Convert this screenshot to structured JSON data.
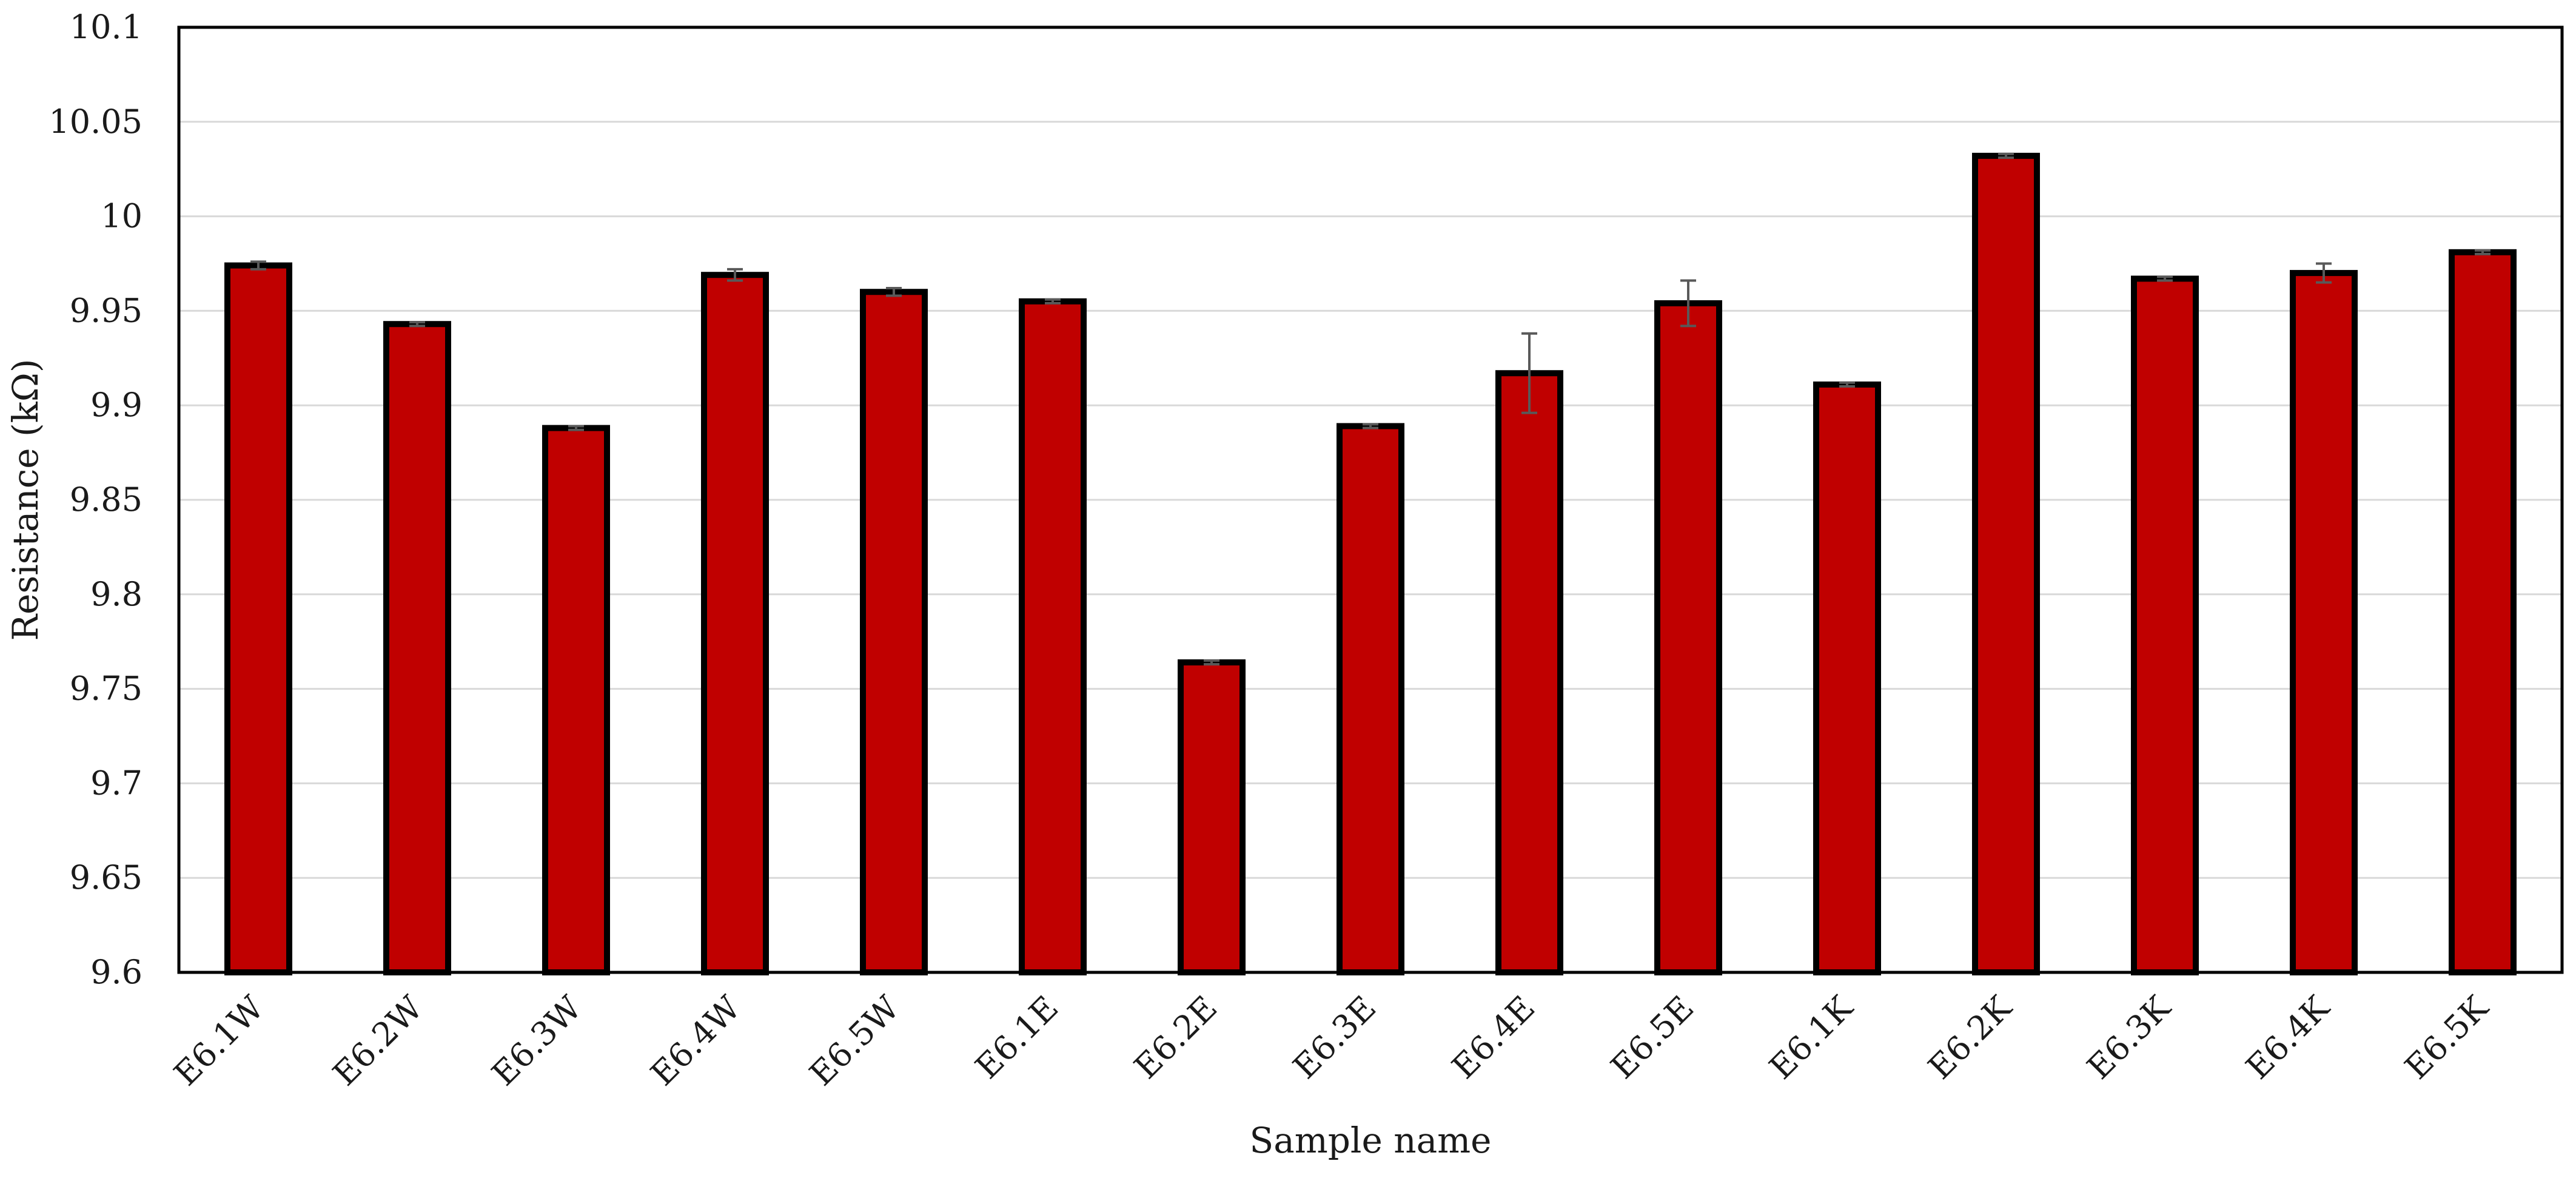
{
  "chart_data": {
    "type": "bar",
    "title": "",
    "xlabel": "Sample name",
    "ylabel": "Resistance (kΩ)",
    "ylim": [
      9.6,
      10.1
    ],
    "yticks": [
      "9.6",
      "9.65",
      "9.7",
      "9.75",
      "9.8",
      "9.85",
      "9.9",
      "9.95",
      "10",
      "10.05",
      "10.1"
    ],
    "grid": true,
    "legend": "none",
    "colors": {
      "bar_fill": "#c00000",
      "bar_stroke": "#000000",
      "grid": "#d9d9d9",
      "error_bar": "#595959"
    },
    "categories": [
      "E6.1W",
      "E6.2W",
      "E6.3W",
      "E6.4W",
      "E6.5W",
      "E6.1E",
      "E6.2E",
      "E6.3E",
      "E6.4E",
      "E6.5E",
      "E6.1K",
      "E6.2K",
      "E6.3K",
      "E6.4K",
      "E6.5K"
    ],
    "values": [
      9.974,
      9.943,
      9.888,
      9.969,
      9.96,
      9.955,
      9.764,
      9.889,
      9.917,
      9.954,
      9.911,
      10.032,
      9.967,
      9.97,
      9.981
    ],
    "errors": [
      0.002,
      0.001,
      0.001,
      0.003,
      0.002,
      0.001,
      0.001,
      0.001,
      0.021,
      0.012,
      0.001,
      0.001,
      0.001,
      0.005,
      0.001
    ]
  }
}
